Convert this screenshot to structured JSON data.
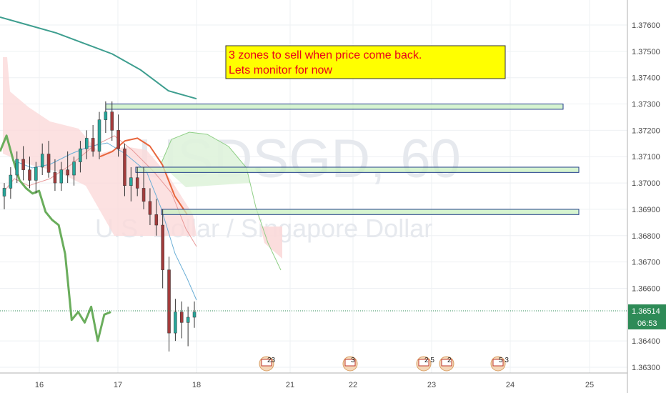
{
  "chart_data": {
    "type": "candlestick",
    "symbol": "USDSGD",
    "interval": "60",
    "watermark_symbol": "USDSGD, 60",
    "watermark_name": "U.S. Dollar / Singapore Dollar",
    "x_labels": [
      "16",
      "17",
      "18",
      "21",
      "22",
      "23",
      "24",
      "25"
    ],
    "y_ticks": [
      "1.37600",
      "1.37500",
      "1.37400",
      "1.37300",
      "1.37200",
      "1.37100",
      "1.37000",
      "1.36900",
      "1.36800",
      "1.36700",
      "1.36600",
      "1.36400",
      "1.36300"
    ],
    "ylim": [
      1.3626,
      1.3767
    ],
    "grid": true,
    "current_price": "1.36514",
    "countdown": "06:53",
    "annotation": {
      "lines": [
        "3 zones to sell when price come back.",
        "Lets monitor for now"
      ]
    },
    "sell_zones": [
      {
        "low": 1.3728,
        "high": 1.373
      },
      {
        "low": 1.3704,
        "high": 1.3706
      },
      {
        "low": 1.3688,
        "high": 1.369
      }
    ],
    "event_badges": [
      "23",
      "3",
      "2 5",
      "2",
      "5 3"
    ],
    "candles": [
      {
        "o": 1.3695,
        "h": 1.37,
        "l": 1.369,
        "c": 1.3698
      },
      {
        "o": 1.3698,
        "h": 1.3706,
        "l": 1.3694,
        "c": 1.3703
      },
      {
        "o": 1.3703,
        "h": 1.3712,
        "l": 1.37,
        "c": 1.3709
      },
      {
        "o": 1.3709,
        "h": 1.3714,
        "l": 1.3701,
        "c": 1.3705
      },
      {
        "o": 1.3705,
        "h": 1.371,
        "l": 1.3698,
        "c": 1.3701
      },
      {
        "o": 1.3701,
        "h": 1.3708,
        "l": 1.3696,
        "c": 1.3706
      },
      {
        "o": 1.3706,
        "h": 1.3715,
        "l": 1.3703,
        "c": 1.3711
      },
      {
        "o": 1.3711,
        "h": 1.3716,
        "l": 1.3702,
        "c": 1.3704
      },
      {
        "o": 1.3704,
        "h": 1.3709,
        "l": 1.3697,
        "c": 1.37
      },
      {
        "o": 1.37,
        "h": 1.3708,
        "l": 1.3697,
        "c": 1.3705
      },
      {
        "o": 1.3705,
        "h": 1.3712,
        "l": 1.37,
        "c": 1.3703
      },
      {
        "o": 1.3703,
        "h": 1.371,
        "l": 1.3699,
        "c": 1.3708
      },
      {
        "o": 1.3708,
        "h": 1.3716,
        "l": 1.3704,
        "c": 1.3713
      },
      {
        "o": 1.3713,
        "h": 1.372,
        "l": 1.3709,
        "c": 1.3717
      },
      {
        "o": 1.3717,
        "h": 1.3722,
        "l": 1.371,
        "c": 1.3712
      },
      {
        "o": 1.3712,
        "h": 1.3727,
        "l": 1.3709,
        "c": 1.3724
      },
      {
        "o": 1.3724,
        "h": 1.3731,
        "l": 1.3719,
        "c": 1.3727
      },
      {
        "o": 1.3727,
        "h": 1.3731,
        "l": 1.3716,
        "c": 1.372
      },
      {
        "o": 1.372,
        "h": 1.3726,
        "l": 1.371,
        "c": 1.3713
      },
      {
        "o": 1.3713,
        "h": 1.3715,
        "l": 1.3695,
        "c": 1.3699
      },
      {
        "o": 1.3699,
        "h": 1.3706,
        "l": 1.3693,
        "c": 1.3702
      },
      {
        "o": 1.3702,
        "h": 1.3706,
        "l": 1.3695,
        "c": 1.3698
      },
      {
        "o": 1.3698,
        "h": 1.3706,
        "l": 1.369,
        "c": 1.3693
      },
      {
        "o": 1.3693,
        "h": 1.3698,
        "l": 1.3684,
        "c": 1.3688
      },
      {
        "o": 1.3688,
        "h": 1.3694,
        "l": 1.368,
        "c": 1.3684
      },
      {
        "o": 1.3684,
        "h": 1.369,
        "l": 1.366,
        "c": 1.3667
      },
      {
        "o": 1.3667,
        "h": 1.3672,
        "l": 1.3636,
        "c": 1.3643
      },
      {
        "o": 1.3643,
        "h": 1.3656,
        "l": 1.364,
        "c": 1.3651
      },
      {
        "o": 1.3651,
        "h": 1.3655,
        "l": 1.3641,
        "c": 1.3647
      },
      {
        "o": 1.3647,
        "h": 1.3653,
        "l": 1.3638,
        "c": 1.3649
      },
      {
        "o": 1.3649,
        "h": 1.3655,
        "l": 1.3645,
        "c": 1.3651
      }
    ],
    "series": [
      {
        "kind": "lagging",
        "color": "#6aad5c",
        "values": [
          1.3712,
          1.3718,
          1.3709,
          1.3701,
          1.3698,
          1.3696,
          1.3697,
          1.3689,
          1.3686,
          1.3684,
          1.3673,
          1.3648,
          1.3651,
          1.3647,
          1.3653,
          1.364,
          1.365,
          1.3651
        ]
      },
      {
        "kind": "moving-average-long",
        "color": "#3e9e8f",
        "values": [
          1.3763,
          1.376,
          1.3757,
          1.3753,
          1.3749,
          1.3743,
          1.3735,
          1.3732
        ]
      },
      {
        "kind": "moving-average-short",
        "color": "#e8663d",
        "values": [
          1.371,
          1.3712,
          1.3716,
          1.3717,
          1.3714,
          1.3707,
          1.3695,
          1.3688
        ]
      }
    ]
  }
}
